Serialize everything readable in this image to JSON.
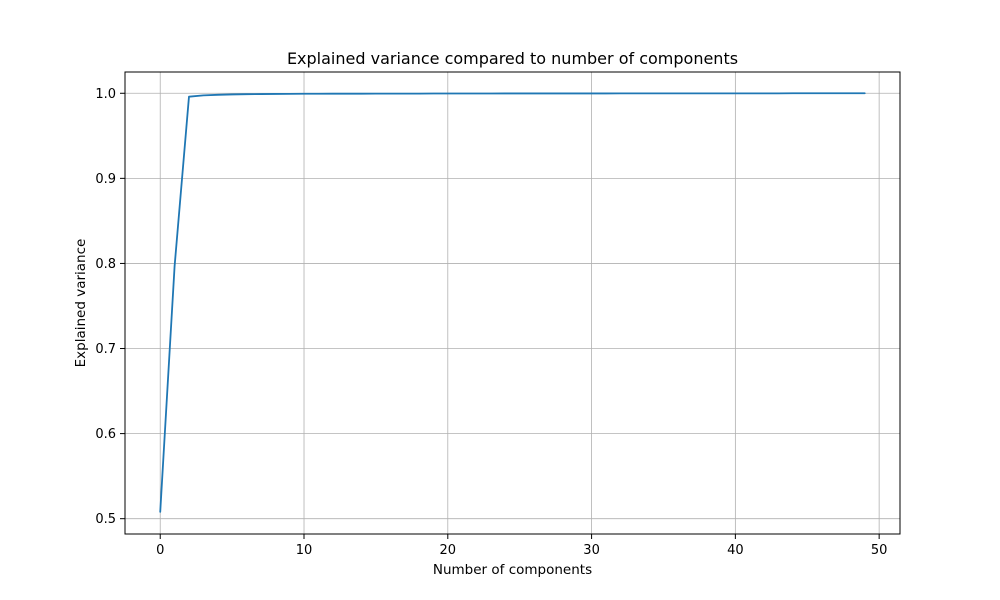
{
  "chart_data": {
    "type": "line",
    "title": "Explained variance compared to number of components",
    "xlabel": "Number of components",
    "ylabel": "Explained variance",
    "xlim": [
      -2.45,
      51.45
    ],
    "ylim": [
      0.482,
      1.025
    ],
    "xticks": [
      0,
      10,
      20,
      30,
      40,
      50
    ],
    "yticks": [
      0.5,
      0.6,
      0.7,
      0.8,
      0.9,
      1.0
    ],
    "grid": true,
    "series": [
      {
        "color": "#1f77b4",
        "x": [
          0,
          1,
          2,
          3,
          4,
          5,
          6,
          7,
          8,
          9,
          10,
          11,
          12,
          13,
          14,
          15,
          16,
          17,
          18,
          19,
          20,
          21,
          22,
          23,
          24,
          25,
          26,
          27,
          28,
          29,
          30,
          31,
          32,
          33,
          34,
          35,
          36,
          37,
          38,
          39,
          40,
          41,
          42,
          43,
          44,
          45,
          46,
          47,
          48,
          49
        ],
        "y": [
          0.508,
          0.797,
          0.996,
          0.9975,
          0.9982,
          0.9986,
          0.9989,
          0.9991,
          0.9992,
          0.9993,
          0.9994,
          0.9994,
          0.9995,
          0.9995,
          0.9995,
          0.9996,
          0.9996,
          0.9996,
          0.9996,
          0.9997,
          0.9997,
          0.9997,
          0.9997,
          0.9997,
          0.9998,
          0.9998,
          0.9998,
          0.9998,
          0.9998,
          0.9998,
          0.9998,
          0.9998,
          0.9999,
          0.9999,
          0.9999,
          0.9999,
          0.9999,
          0.9999,
          0.9999,
          0.9999,
          0.9999,
          0.9999,
          0.9999,
          0.9999,
          1.0,
          1.0,
          1.0,
          1.0,
          1.0,
          1.0
        ]
      }
    ]
  }
}
